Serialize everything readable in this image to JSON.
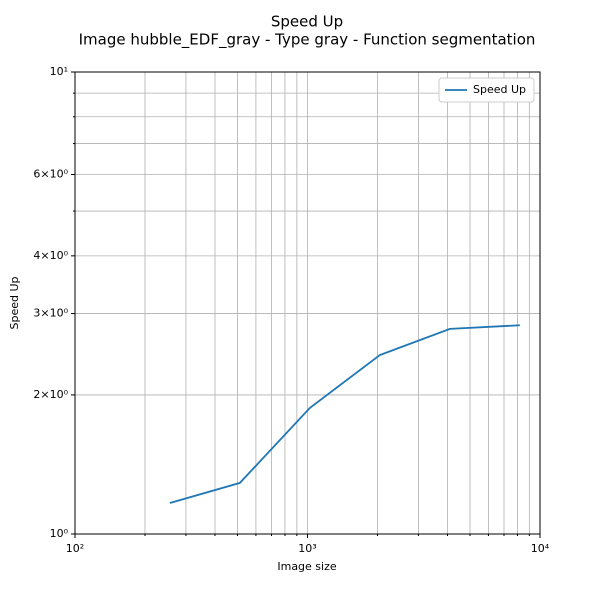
{
  "chart_data": {
    "type": "line",
    "title": "Speed Up",
    "subtitle": "Image hubble_EDF_gray - Type gray - Function segmentation",
    "x_label": "Image size",
    "y_label": "Speed Up",
    "x": [
      256,
      512,
      1024,
      2048,
      4096,
      8192
    ],
    "series": [
      {
        "name": "Speed Up",
        "color": "#1f77b4",
        "values": [
          1.167,
          1.29,
          1.875,
          2.44,
          2.78,
          2.83
        ]
      }
    ],
    "xscale": "log",
    "yscale": "log",
    "xlim": [
      100,
      10000
    ],
    "ylim": [
      1,
      10
    ],
    "xticks": [
      {
        "value": 100,
        "label": "10²"
      },
      {
        "value": 1000,
        "label": "10³"
      },
      {
        "value": 10000,
        "label": "10⁴"
      }
    ],
    "xminorticks": [
      200,
      300,
      400,
      500,
      600,
      700,
      800,
      900,
      2000,
      3000,
      4000,
      5000,
      6000,
      7000,
      8000,
      9000
    ],
    "yticks": [
      {
        "value": 1,
        "label": "10⁰"
      },
      {
        "value": 2,
        "label": "2×10⁰"
      },
      {
        "value": 3,
        "label": "3×10⁰"
      },
      {
        "value": 4,
        "label": "4×10⁰"
      },
      {
        "value": 6,
        "label": "6×10⁰"
      },
      {
        "value": 10,
        "label": "10¹"
      }
    ],
    "yminorticks": [
      5,
      7,
      8,
      9
    ],
    "grid": true,
    "legend": "upper right"
  }
}
